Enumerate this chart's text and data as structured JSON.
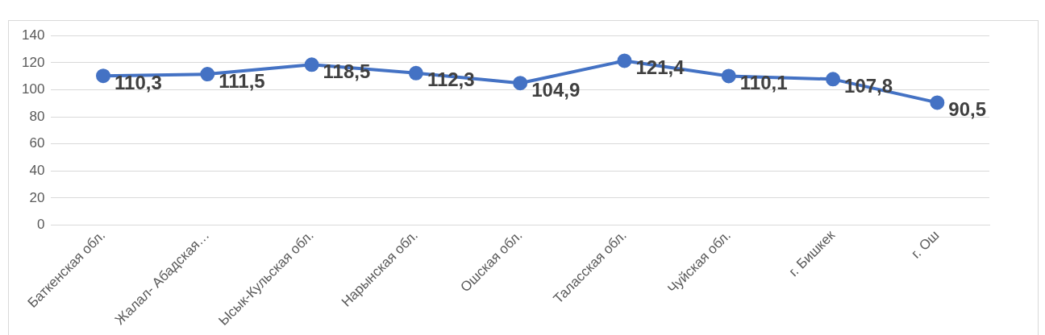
{
  "chart_data": {
    "type": "line",
    "categories": [
      "Баткенская обл.",
      "Жалал- Абадская…",
      "Ысык-Кульская обл.",
      "Нарынская обл.",
      "Ошская обл.",
      "Таласская обл.",
      "Чуйская обл.",
      "г. Бишкек",
      "г. Ош"
    ],
    "series": [
      {
        "color": "#4472c4",
        "values": [
          110.3,
          111.5,
          118.5,
          112.3,
          104.9,
          121.4,
          110.1,
          107.8,
          90.5
        ],
        "value_labels": [
          "110,3",
          "111,5",
          "118,5",
          "112,3",
          "104,9",
          "121,4",
          "110,1",
          "107,8",
          "90,5"
        ]
      }
    ],
    "ylim": [
      0,
      140
    ],
    "yticks": [
      0,
      20,
      40,
      60,
      80,
      100,
      120,
      140
    ],
    "grid": "y",
    "legend": false,
    "marker": "circle",
    "line_style": "solid"
  }
}
